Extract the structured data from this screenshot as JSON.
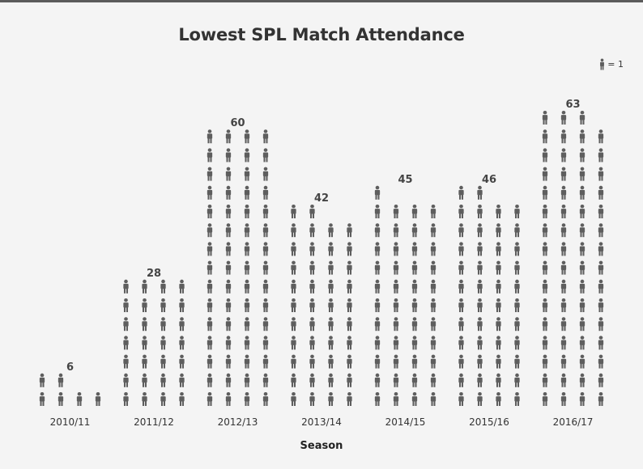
{
  "chart_data": {
    "type": "bar",
    "title": "Lowest SPL Match Attendance",
    "xlabel": "Season",
    "ylabel": "",
    "categories": [
      "2010/11",
      "2011/12",
      "2012/13",
      "2013/14",
      "2014/15",
      "2015/16",
      "2016/17"
    ],
    "values": [
      6,
      28,
      60,
      42,
      45,
      46,
      63
    ],
    "legend": {
      "position": "top-right",
      "label": "= 1",
      "icon": "person-icon"
    },
    "grid": false,
    "colors": {
      "icon": "#5e5e5e",
      "background": "#f4f4f4",
      "text": "#333333"
    }
  }
}
